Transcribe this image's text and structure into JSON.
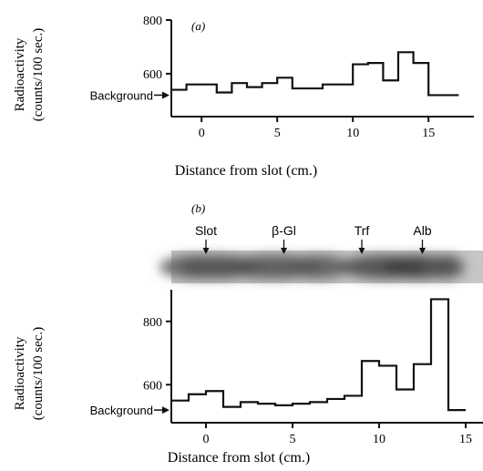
{
  "chart_data": [
    {
      "panel": "(a)",
      "type": "line",
      "step": true,
      "xlabel": "Distance from slot (cm.)",
      "ylabel": "Radioactivity",
      "ylabel2": "(counts/100 sec.)",
      "xlim": [
        -2,
        18
      ],
      "ylim": [
        440,
        800
      ],
      "xticks": [
        0,
        5,
        10,
        15
      ],
      "yticks": [
        600,
        800
      ],
      "background_label": "Background",
      "background_value": 520,
      "grid": false,
      "series": [
        {
          "edges": [
            -2,
            -1,
            1,
            2,
            3,
            4,
            5,
            6,
            7,
            8,
            9,
            10,
            11,
            12,
            13,
            14,
            15,
            16,
            17
          ],
          "values": [
            540,
            560,
            530,
            565,
            550,
            565,
            585,
            545,
            545,
            560,
            560,
            635,
            640,
            575,
            680,
            640,
            520,
            520
          ]
        }
      ]
    },
    {
      "panel": "(b)",
      "type": "line",
      "step": true,
      "xlabel": "Distance from slot (cm.)",
      "ylabel": "Radioactivity",
      "ylabel2": "(counts/100 sec.)",
      "xlim": [
        -2,
        16
      ],
      "ylim": [
        480,
        900
      ],
      "xticks": [
        0,
        5,
        10,
        15
      ],
      "yticks": [
        600,
        800
      ],
      "background_label": "Background",
      "background_value": 520,
      "grid": false,
      "electrophoresis_labels": [
        "Slot",
        "β-Gl",
        "Trf",
        "Alb"
      ],
      "electrophoresis_positions": [
        0,
        4.5,
        9,
        12.5
      ],
      "series": [
        {
          "edges": [
            -2,
            -1,
            0,
            1,
            2,
            3,
            4,
            5,
            6,
            7,
            8,
            9,
            10,
            11,
            12,
            13,
            14,
            15
          ],
          "values": [
            550,
            570,
            580,
            530,
            545,
            540,
            535,
            540,
            545,
            555,
            565,
            675,
            660,
            585,
            665,
            870,
            520
          ]
        }
      ]
    }
  ]
}
